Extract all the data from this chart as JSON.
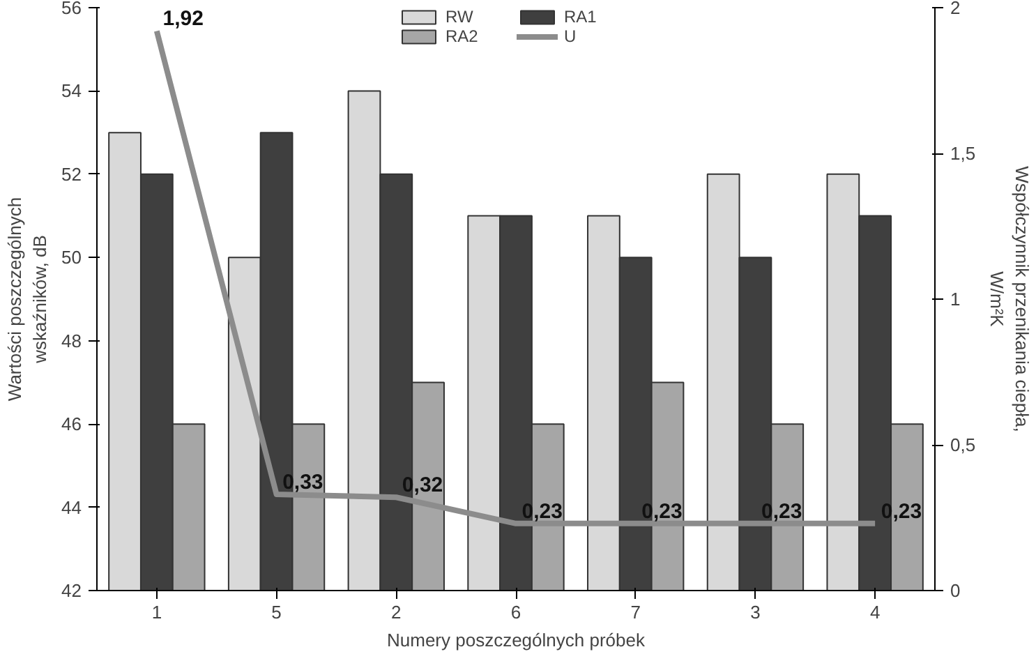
{
  "chart_data": {
    "type": "bar",
    "categories": [
      "1",
      "5",
      "2",
      "6",
      "7",
      "3",
      "4"
    ],
    "xlabel": "Numery poszczególnych próbek",
    "ylabel": "Wartości poszczególnych\nwskaźników, dB",
    "y2label": "Współczynnik przenikania ciepła,\nW/m²K",
    "series": [
      {
        "name": "RW",
        "color": "#d9d9d9",
        "values": [
          53,
          50,
          54,
          51,
          51,
          52,
          52
        ]
      },
      {
        "name": "RA1",
        "color": "#3f3f3f",
        "values": [
          52,
          53,
          52,
          51,
          50,
          50,
          51
        ]
      },
      {
        "name": "RA2",
        "color": "#a6a6a6",
        "values": [
          46,
          46,
          47,
          46,
          47,
          46,
          46
        ]
      },
      {
        "name": "U",
        "type": "line",
        "axis": "y2",
        "color": "#8c8c8c",
        "values": [
          1.92,
          0.33,
          0.32,
          0.23,
          0.23,
          0.23,
          0.23
        ],
        "value_labels": [
          "1,92",
          "0,33",
          "0,32",
          "0,23",
          "0,23",
          "0,23",
          "0,23"
        ]
      }
    ],
    "ylim": [
      42,
      56
    ],
    "yticks": [
      42,
      44,
      46,
      48,
      50,
      52,
      54,
      56
    ],
    "y2lim": [
      0,
      2
    ],
    "y2ticks": [
      0,
      {
        "value": 0.5,
        "label": "0,5"
      },
      1,
      {
        "value": 1.5,
        "label": "1,5"
      },
      2
    ],
    "legend": "top",
    "grid": false
  }
}
